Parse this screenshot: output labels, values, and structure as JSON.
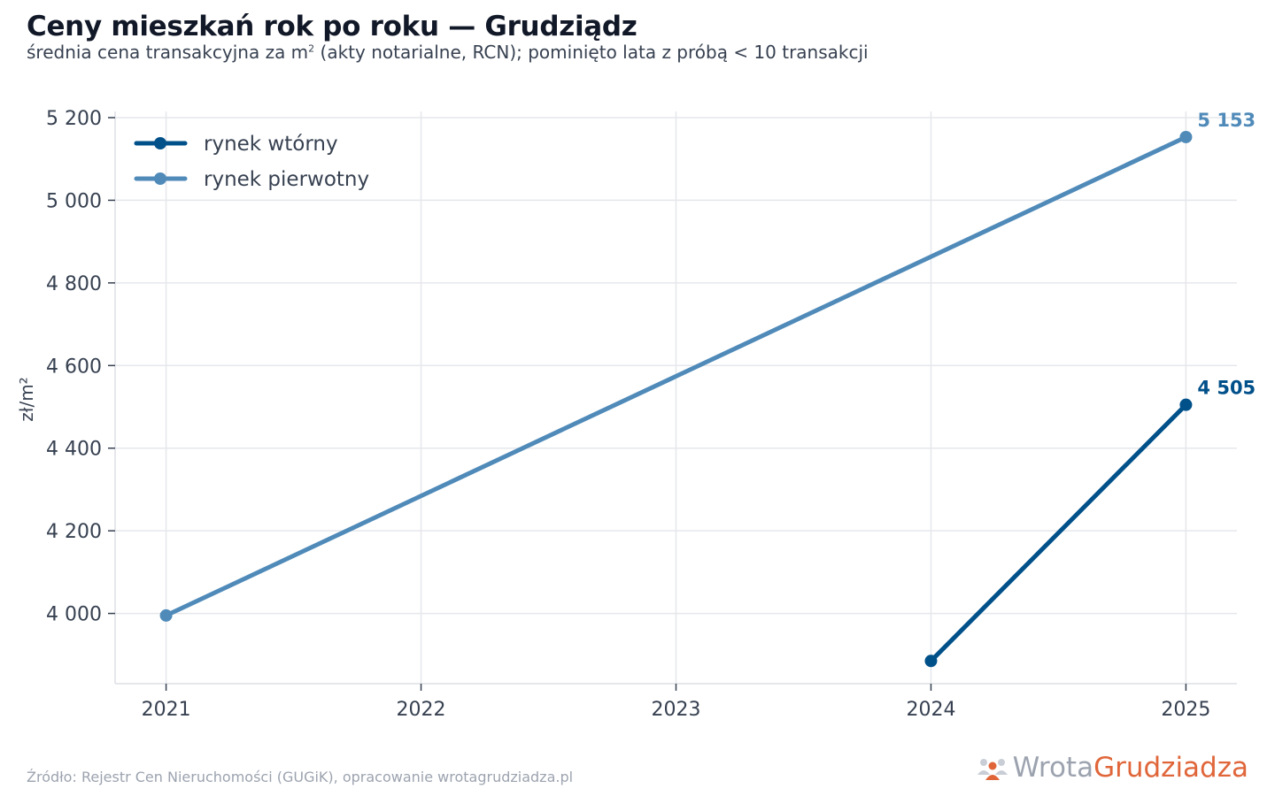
{
  "header": {
    "title": "Ceny mieszkań rok po roku — Grudziądz",
    "subtitle_before_sup": "średnia cena transakcyjna za m",
    "subtitle_sup": "2",
    "subtitle_after_sup": " (akty notarialne, RCN); pominięto lata z próbą < 10 transakcji"
  },
  "footer": {
    "source": "Źródło: Rejestr Cen Nieruchomości (GUGiK), opracowanie wrotagrudziadza.pl",
    "brand_part1": "Wrota",
    "brand_part2": "Grudziadza",
    "brand_icon": "people-icon"
  },
  "chart_data": {
    "type": "line",
    "title": "Ceny mieszkań rok po roku — Grudziądz",
    "ylabel": "zł/m²",
    "xlabel": "",
    "x": [
      2021,
      2022,
      2023,
      2024,
      2025
    ],
    "x_ticks": [
      "2021",
      "2022",
      "2023",
      "2024",
      "2025"
    ],
    "y_ticks": [
      4000,
      4200,
      4400,
      4600,
      4800,
      5000,
      5200
    ],
    "y_tick_labels": [
      "4 000",
      "4 200",
      "4 400",
      "4 600",
      "4 800",
      "5 000",
      "5 200"
    ],
    "ylim": [
      3830,
      5215
    ],
    "xlim": [
      2020.8,
      2025.2
    ],
    "grid": true,
    "legend_position": "top-left",
    "series": [
      {
        "name": "rynek wtórny",
        "color": "#00508a",
        "points": [
          [
            2024,
            3885
          ],
          [
            2025,
            4505
          ]
        ],
        "end_label": "4 505"
      },
      {
        "name": "rynek pierwotny",
        "color": "#4f8ab9",
        "points": [
          [
            2021,
            3995
          ],
          [
            2025,
            5153
          ]
        ],
        "end_label": "5 153"
      }
    ]
  }
}
